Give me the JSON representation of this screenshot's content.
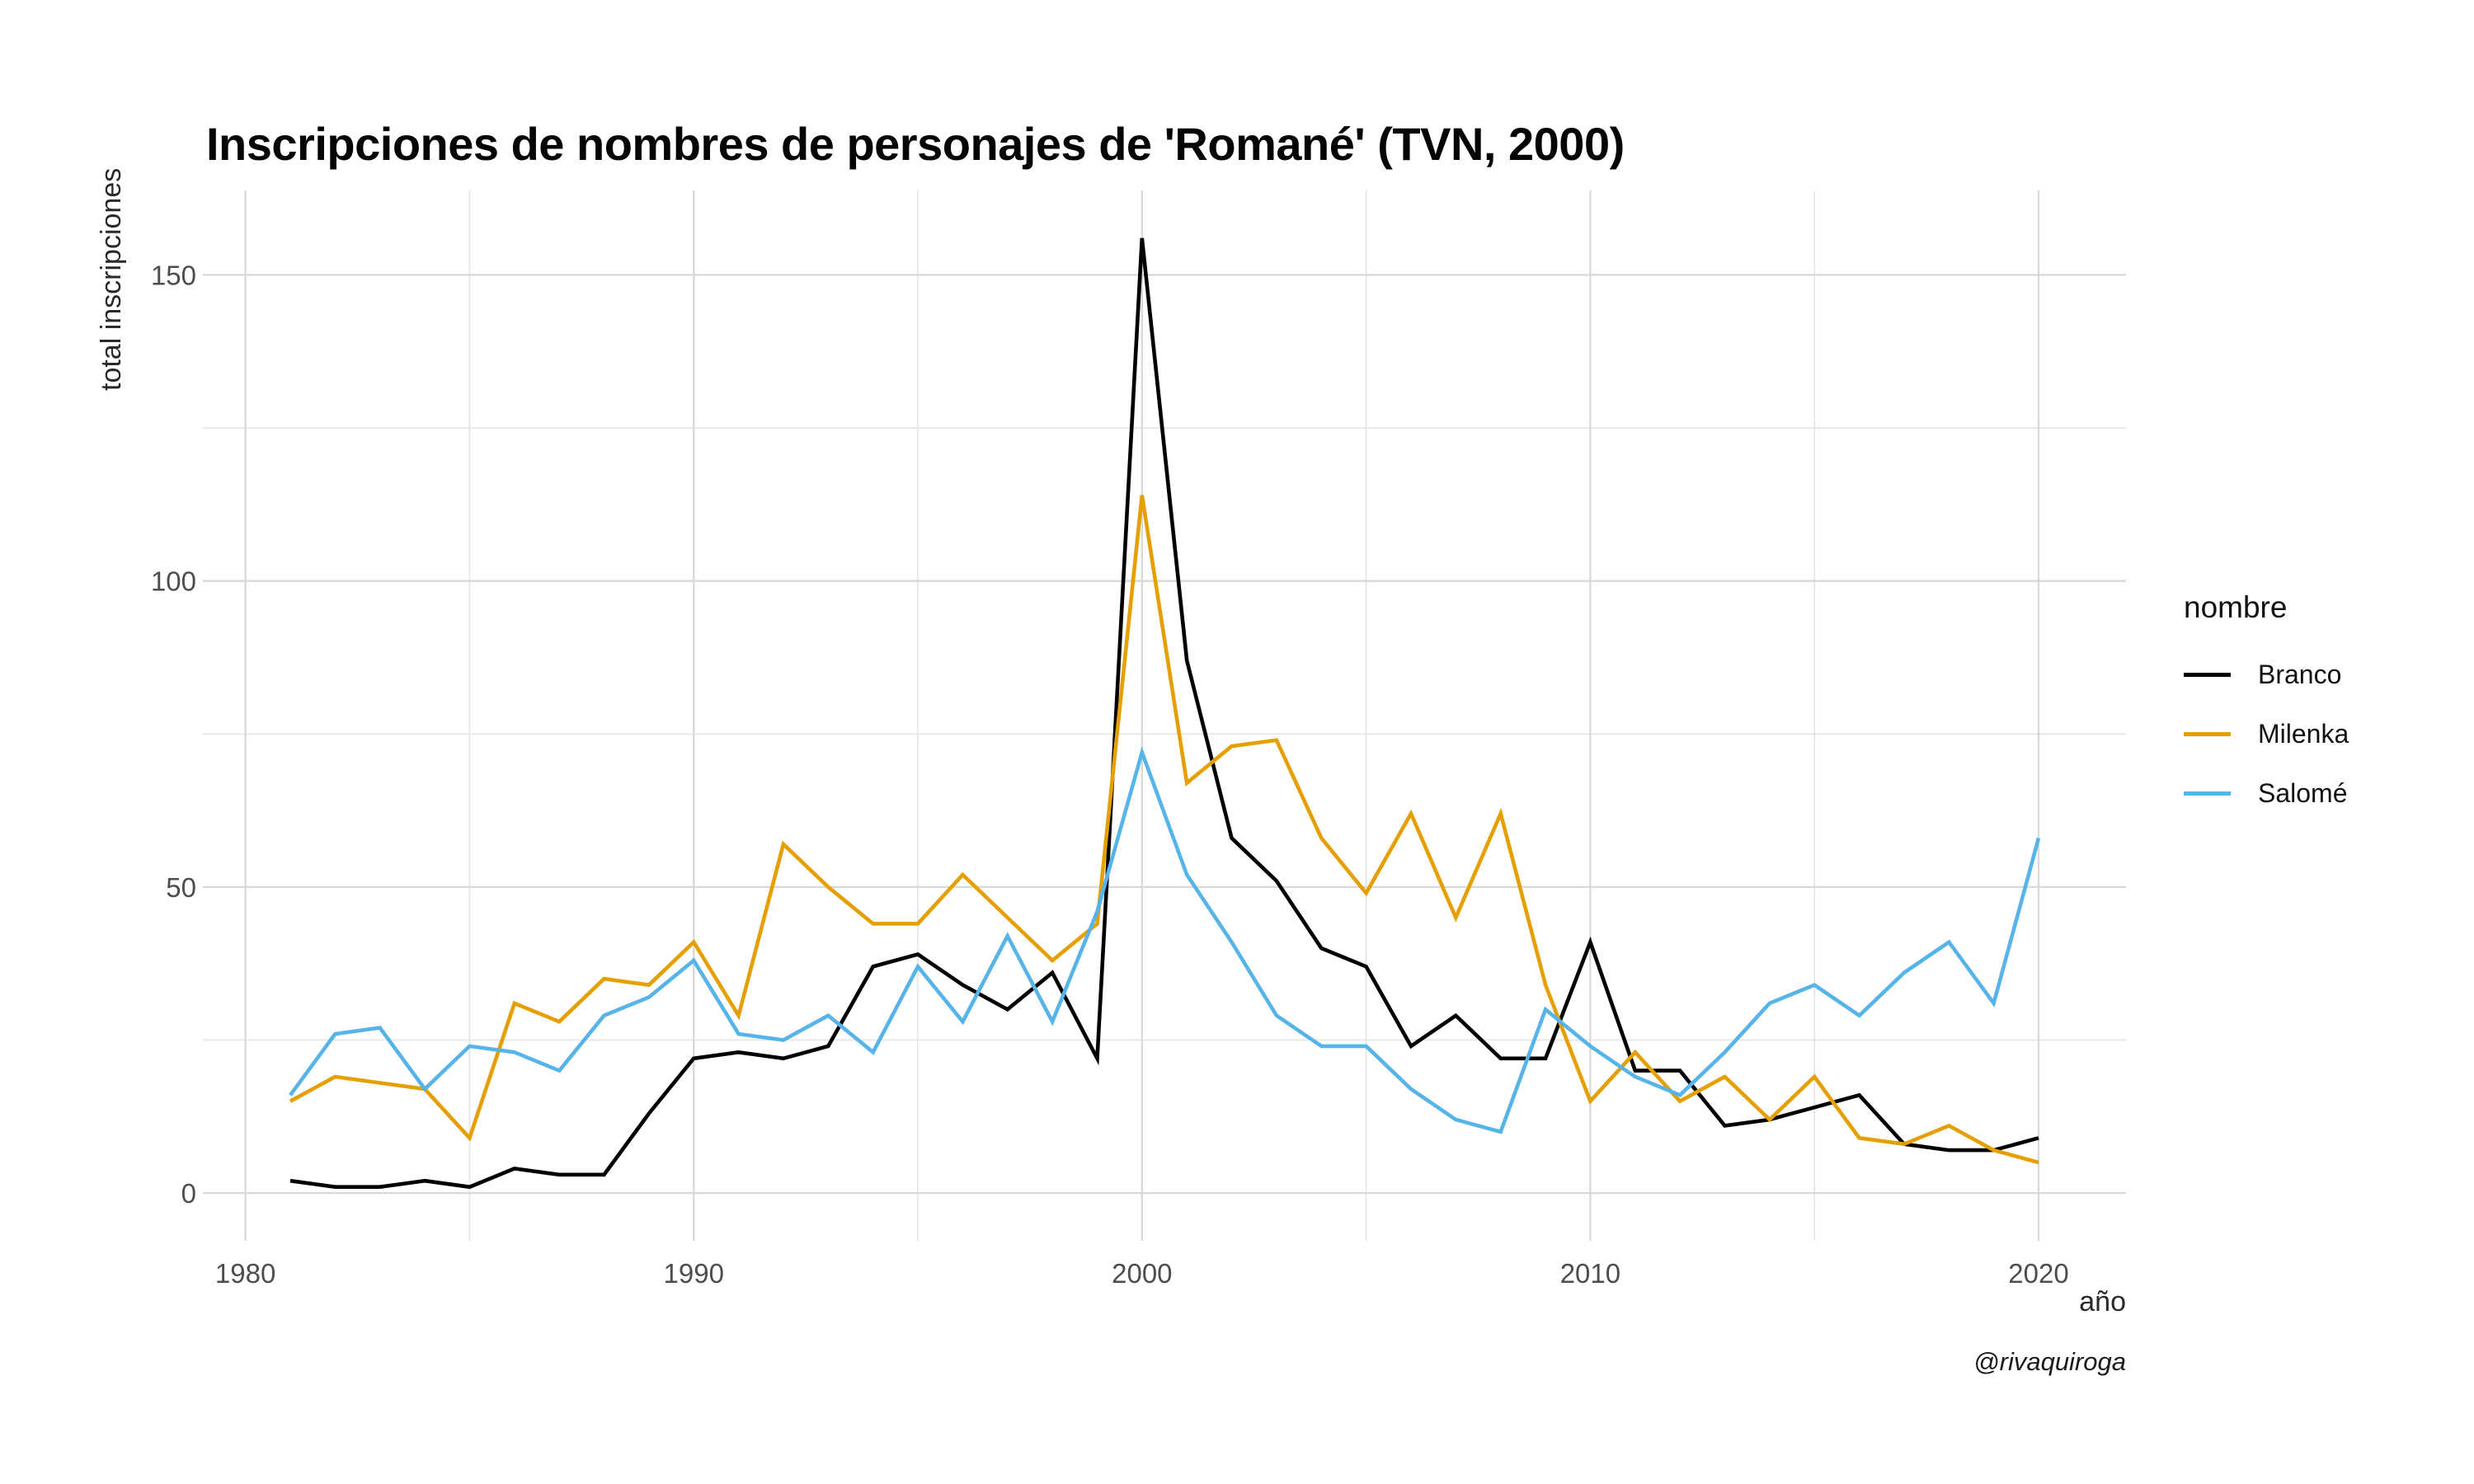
{
  "title": "Inscripciones de nombres de personajes de 'Romané' (TVN, 2000)",
  "caption": "@rivaquiroga",
  "colors": {
    "branco": "#000000",
    "milenka": "#E69F00",
    "salome": "#56B4E9",
    "grid_major": "#D9D9D9",
    "grid_minor": "#E4E4E4",
    "axis_text": "#4D4D4D",
    "text": "#1A1A1A",
    "background": "#FFFFFF"
  },
  "legend": {
    "title": "nombre",
    "entries": [
      {
        "label": "Branco",
        "color": "#000000"
      },
      {
        "label": "Milenka",
        "color": "#E69F00"
      },
      {
        "label": "Salomé",
        "color": "#56B4E9"
      }
    ]
  },
  "chart_data": {
    "type": "line",
    "title": "Inscripciones de nombres de personajes de 'Romané' (TVN, 2000)",
    "xlabel": "año",
    "ylabel": "total inscripciones",
    "grid": true,
    "legend_position": "right",
    "xlim": [
      1979.05,
      2021.95
    ],
    "ylim": [
      -7.8,
      163.8
    ],
    "x_ticks": [
      1980,
      1990,
      2000,
      2010,
      2020
    ],
    "x_minor": [
      1985,
      1995,
      2005,
      2015
    ],
    "y_ticks": [
      0,
      50,
      100,
      150
    ],
    "y_minor": [
      25,
      75,
      125
    ],
    "x": [
      1981,
      1982,
      1983,
      1984,
      1985,
      1986,
      1987,
      1988,
      1989,
      1990,
      1991,
      1992,
      1993,
      1994,
      1995,
      1996,
      1997,
      1998,
      1999,
      2000,
      2001,
      2002,
      2003,
      2004,
      2005,
      2006,
      2007,
      2008,
      2009,
      2010,
      2011,
      2012,
      2013,
      2014,
      2015,
      2016,
      2017,
      2018,
      2019,
      2020
    ],
    "series": [
      {
        "name": "Branco",
        "color": "#000000",
        "values": [
          2,
          1,
          1,
          2,
          1,
          4,
          3,
          3,
          13,
          22,
          23,
          22,
          24,
          37,
          39,
          34,
          30,
          36,
          22,
          156,
          87,
          58,
          51,
          40,
          37,
          24,
          29,
          22,
          22,
          41,
          20,
          20,
          11,
          12,
          14,
          16,
          8,
          7,
          7,
          9
        ]
      },
      {
        "name": "Milenka",
        "color": "#E69F00",
        "values": [
          15,
          19,
          18,
          17,
          9,
          31,
          28,
          35,
          34,
          41,
          29,
          57,
          50,
          44,
          44,
          52,
          45,
          38,
          44,
          114,
          67,
          73,
          74,
          58,
          49,
          62,
          45,
          62,
          34,
          15,
          23,
          15,
          19,
          12,
          19,
          9,
          8,
          11,
          7,
          5
        ]
      },
      {
        "name": "Salomé",
        "color": "#56B4E9",
        "values": [
          16,
          26,
          27,
          17,
          24,
          23,
          20,
          29,
          32,
          38,
          26,
          25,
          29,
          23,
          37,
          28,
          42,
          28,
          46,
          72,
          52,
          41,
          29,
          24,
          24,
          17,
          12,
          10,
          30,
          24,
          19,
          16,
          23,
          31,
          34,
          29,
          36,
          41,
          31,
          58
        ]
      }
    ]
  }
}
